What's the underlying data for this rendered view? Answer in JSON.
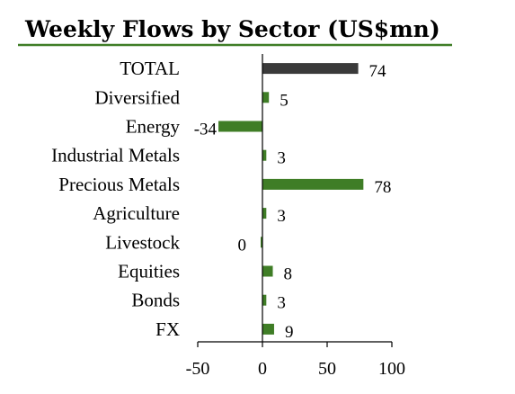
{
  "chart_data": {
    "type": "bar",
    "orientation": "horizontal",
    "title": "Weekly Flows by Sector (US$mn)",
    "categories": [
      "TOTAL",
      "Diversified",
      "Energy",
      "Industrial Metals",
      "Precious Metals",
      "Agriculture",
      "Livestock",
      "Equities",
      "Bonds",
      "FX"
    ],
    "values": [
      74,
      5,
      -34,
      3,
      78,
      3,
      0,
      8,
      3,
      9
    ],
    "value_labels": [
      "74",
      "5",
      "-34",
      "3",
      "78",
      "3",
      "0",
      "8",
      "3",
      "9"
    ],
    "xlim": [
      -50,
      100
    ],
    "xticks": [
      -50,
      0,
      50,
      100
    ],
    "xtick_labels": [
      "-50",
      "0",
      "50",
      "100"
    ],
    "grid": false,
    "colors": {
      "total_bar": "#3a3a3a",
      "sector_bar": "#3f7d26",
      "title_underline": "#3f7d26",
      "axis": "#000000"
    }
  }
}
